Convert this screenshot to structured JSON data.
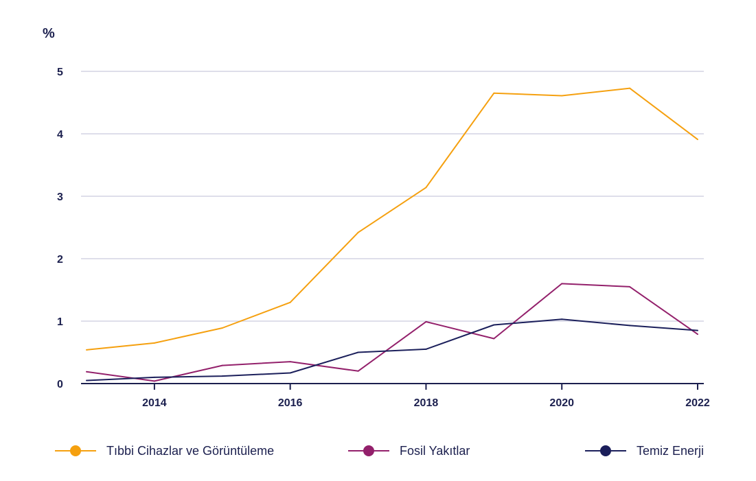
{
  "chart_data": {
    "type": "line",
    "ylabel": "%",
    "ylim": [
      0,
      5
    ],
    "xlim": [
      2013,
      2022
    ],
    "y_ticks": [
      "0",
      "1",
      "2",
      "3",
      "4",
      "5"
    ],
    "x_ticks": [
      "2014",
      "2016",
      "2018",
      "2020",
      "2022"
    ],
    "x": [
      2013,
      2014,
      2015,
      2016,
      2017,
      2018,
      2019,
      2020,
      2021,
      2022
    ],
    "grid": "horizontal",
    "legend": "bottom",
    "series": [
      {
        "name": "Tıbbi Cihazlar ve Görüntüleme",
        "color": "#f5a00f",
        "values": [
          0.54,
          0.65,
          0.89,
          1.3,
          2.42,
          3.14,
          4.65,
          4.61,
          4.73,
          3.91
        ]
      },
      {
        "name": "Fosil Yakıtlar",
        "color": "#93206b",
        "values": [
          0.19,
          0.04,
          0.29,
          0.35,
          0.2,
          0.99,
          0.72,
          1.6,
          1.55,
          0.79
        ]
      },
      {
        "name": "Temiz Enerji",
        "color": "#1b1f5b",
        "values": [
          0.05,
          0.1,
          0.12,
          0.17,
          0.5,
          0.55,
          0.94,
          1.03,
          0.93,
          0.85
        ]
      }
    ]
  }
}
